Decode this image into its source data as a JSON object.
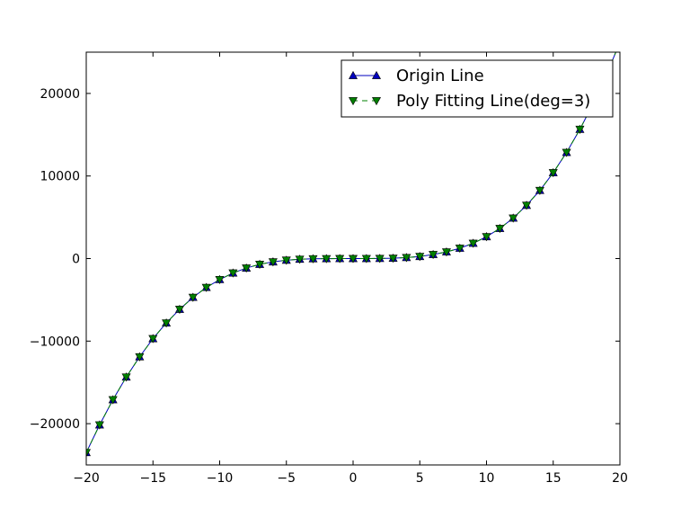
{
  "chart_data": {
    "type": "line",
    "title": "",
    "xlabel": "",
    "ylabel": "",
    "xlim": [
      -20,
      20
    ],
    "ylim": [
      -25000,
      25000
    ],
    "xticks": [
      -20,
      -15,
      -10,
      -5,
      0,
      5,
      10,
      15,
      20
    ],
    "xtick_labels": [
      "−20",
      "−15",
      "−10",
      "−5",
      "0",
      "5",
      "10",
      "15",
      "20"
    ],
    "yticks": [
      -20000,
      -10000,
      0,
      10000,
      20000
    ],
    "ytick_labels": [
      "−20000",
      "−10000",
      "0",
      "10000",
      "20000"
    ],
    "grid": false,
    "legend_position": "top-right",
    "x": [
      -20,
      -19,
      -18,
      -17,
      -16,
      -15,
      -14,
      -13,
      -12,
      -11,
      -10,
      -9,
      -8,
      -7,
      -6,
      -5,
      -4,
      -3,
      -2,
      -1,
      0,
      1,
      2,
      3,
      4,
      5,
      6,
      7,
      8,
      9,
      10,
      11,
      12,
      13,
      14,
      15,
      16,
      17,
      18,
      19,
      20
    ],
    "series": [
      {
        "name": "Origin Line",
        "color": "#0000bf",
        "marker": "triangle-up",
        "linestyle": "solid",
        "values": [
          -23500,
          -20150,
          -17100,
          -14350,
          -11900,
          -9700,
          -7800,
          -6150,
          -4700,
          -3500,
          -2550,
          -1750,
          -1150,
          -700,
          -400,
          -200,
          -80,
          -25,
          -10,
          -2,
          0,
          2,
          10,
          40,
          120,
          250,
          490,
          800,
          1250,
          1850,
          2650,
          3650,
          4900,
          6450,
          8250,
          10400,
          12850,
          15650,
          18800,
          22300,
          26200
        ]
      },
      {
        "name": "Poly Fitting Line(deg=3)",
        "color": "#008000",
        "marker": "triangle-down",
        "linestyle": "dashed",
        "values": [
          -23500,
          -20150,
          -17100,
          -14350,
          -11900,
          -9700,
          -7800,
          -6150,
          -4700,
          -3500,
          -2550,
          -1750,
          -1150,
          -700,
          -400,
          -200,
          -80,
          -25,
          -10,
          -2,
          0,
          2,
          10,
          40,
          120,
          250,
          490,
          800,
          1250,
          1850,
          2650,
          3650,
          4900,
          6450,
          8250,
          10400,
          12850,
          15650,
          18800,
          22300,
          26200
        ]
      }
    ]
  }
}
